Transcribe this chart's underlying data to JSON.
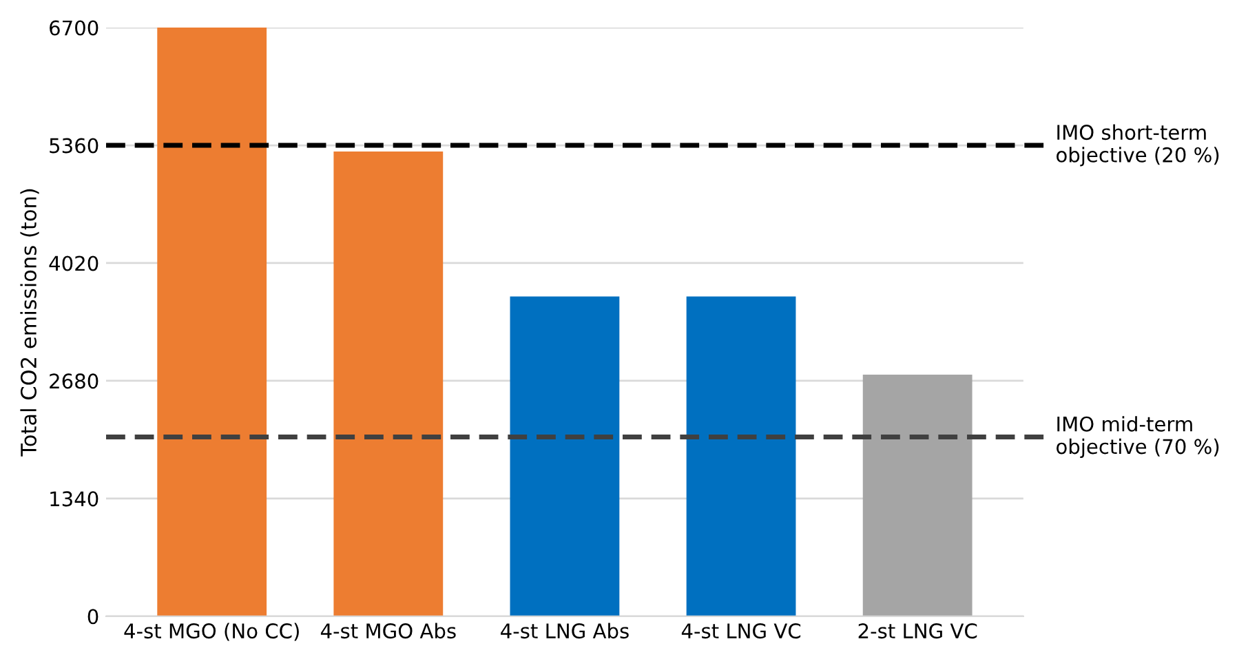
{
  "chart_data": {
    "type": "bar",
    "ylabel": "Total CO2 emissions (ton)",
    "categories": [
      "4-st MGO (No CC)",
      "4-st MGO Abs",
      "4-st LNG Abs",
      "4-st LNG VC",
      "2-st LNG VC"
    ],
    "values": [
      6700,
      5290,
      3640,
      3640,
      2750
    ],
    "colors": [
      "#ed7d31",
      "#ed7d31",
      "#0070c0",
      "#0070c0",
      "#a5a5a5"
    ],
    "ylim": [
      0,
      6700
    ],
    "yticks": [
      0,
      1340,
      2680,
      4020,
      5360,
      6700
    ],
    "grid": "y",
    "legend": false,
    "ref_lines": [
      {
        "axis": "y",
        "value": 5360,
        "label": "IMO short-term\nobjective (20 %)",
        "color": "#000000",
        "line_style": "dashed"
      },
      {
        "axis": "y",
        "value": 2040,
        "label": "IMO mid-term\nobjective (70 %)",
        "color": "#404040",
        "line_style": "dashed"
      }
    ]
  }
}
